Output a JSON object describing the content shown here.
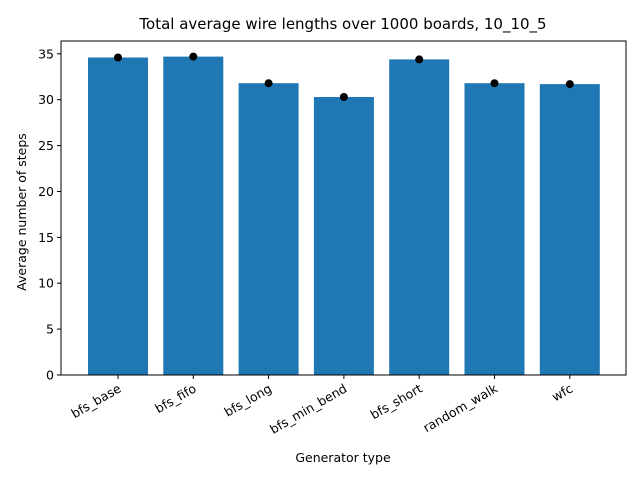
{
  "chart_data": {
    "type": "bar",
    "title": "Total average wire lengths over 1000 boards, 10_10_5",
    "xlabel": "Generator type",
    "ylabel": "Average number of steps",
    "categories": [
      "bfs_base",
      "bfs_fifo",
      "bfs_long",
      "bfs_min_bend",
      "bfs_short",
      "random_walk",
      "wfc"
    ],
    "values": [
      34.6,
      34.7,
      31.8,
      30.3,
      34.4,
      31.8,
      31.7
    ],
    "markers": [
      34.6,
      34.7,
      31.8,
      30.3,
      34.4,
      31.8,
      31.7
    ],
    "ylim": [
      0,
      36.4
    ],
    "yticks": [
      0,
      5,
      10,
      15,
      20,
      25,
      30,
      35
    ],
    "grid": false,
    "legend": "none",
    "colors": {
      "bar": "#1f77b4",
      "marker": "#000000"
    }
  }
}
